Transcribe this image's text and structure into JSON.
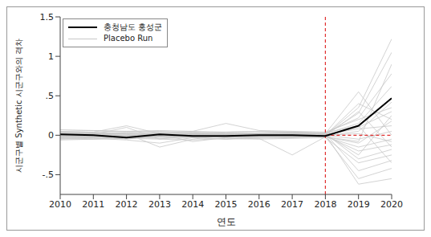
{
  "chart_data": {
    "type": "line",
    "x_label": "연도",
    "y_label": "시군구별 Synthetic 시군구와의 격차",
    "x": [
      2010,
      2011,
      2012,
      2013,
      2014,
      2015,
      2016,
      2017,
      2018,
      2019,
      2020
    ],
    "xlim": [
      2010,
      2020
    ],
    "xticks": [
      2010,
      2011,
      2012,
      2013,
      2014,
      2015,
      2016,
      2017,
      2018,
      2019,
      2020
    ],
    "ylim": [
      -0.75,
      1.5
    ],
    "yticks": [
      {
        "value": -0.5,
        "label": "-.5"
      },
      0,
      {
        "value": 0.5,
        "label": ".5"
      },
      1,
      1.5
    ],
    "legend": "top-left",
    "grid": false,
    "vline": {
      "x": 2018,
      "color": "#e03030",
      "line_style": "dashed"
    },
    "hline": {
      "y": 0,
      "x_from": 2018,
      "color": "#e03030",
      "line_style": "dashed"
    },
    "series": [
      {
        "name": "충청남도 홍성군",
        "color": "#000000",
        "line_style": "solid",
        "values": [
          0.01,
          0.0,
          -0.03,
          0.01,
          -0.01,
          -0.01,
          0.0,
          0.0,
          -0.01,
          0.12,
          0.47
        ]
      }
    ],
    "placebo": {
      "name": "Placebo Run",
      "color": "#c8c8c8",
      "line_style": "solid",
      "runs": [
        [
          0.02,
          0.03,
          0.01,
          0.02,
          0.0,
          0.01,
          0.02,
          0.01,
          0.0,
          0.35,
          1.22
        ],
        [
          -0.03,
          -0.02,
          -0.05,
          0.0,
          -0.02,
          -0.01,
          0.0,
          -0.02,
          0.01,
          0.28,
          1.05
        ],
        [
          0.05,
          0.06,
          0.04,
          0.05,
          0.03,
          0.04,
          0.05,
          0.04,
          0.03,
          0.22,
          0.78
        ],
        [
          0.0,
          0.01,
          0.1,
          -0.05,
          0.02,
          0.0,
          0.01,
          0.0,
          0.02,
          0.15,
          0.62
        ],
        [
          -0.05,
          -0.04,
          -0.06,
          -0.1,
          -0.03,
          -0.05,
          -0.02,
          -0.03,
          -0.01,
          0.05,
          0.42
        ],
        [
          0.07,
          0.06,
          0.05,
          0.06,
          0.05,
          0.15,
          0.06,
          0.05,
          0.04,
          0.2,
          0.35
        ],
        [
          0.01,
          0.0,
          -0.01,
          -0.02,
          0.0,
          0.01,
          0.0,
          -0.01,
          0.0,
          0.1,
          0.3
        ],
        [
          -0.02,
          -0.01,
          0.0,
          0.01,
          -0.08,
          -0.03,
          -0.02,
          0.0,
          -0.02,
          -0.1,
          0.18
        ],
        [
          0.03,
          0.02,
          0.03,
          0.02,
          0.04,
          0.02,
          0.03,
          0.02,
          0.01,
          0.08,
          0.12
        ],
        [
          0.0,
          -0.02,
          -0.01,
          0.0,
          0.01,
          0.0,
          -0.01,
          0.0,
          0.0,
          -0.05,
          0.05
        ],
        [
          -0.04,
          -0.03,
          -0.02,
          -0.04,
          -0.03,
          -0.02,
          -0.04,
          -0.25,
          -0.02,
          -0.15,
          -0.05
        ],
        [
          0.02,
          0.01,
          0.02,
          0.0,
          0.01,
          0.02,
          0.01,
          0.02,
          0.0,
          0.02,
          -0.08
        ],
        [
          -0.01,
          0.0,
          -0.02,
          -0.01,
          0.0,
          -0.01,
          0.0,
          -0.01,
          -0.01,
          -0.2,
          -0.12
        ],
        [
          0.04,
          0.03,
          0.02,
          -0.15,
          -0.05,
          0.0,
          0.02,
          0.03,
          0.02,
          -0.3,
          -0.18
        ],
        [
          -0.06,
          -0.05,
          -0.04,
          -0.05,
          -0.06,
          -0.04,
          -0.05,
          -0.04,
          -0.03,
          -0.35,
          -0.25
        ],
        [
          0.01,
          0.02,
          0.0,
          0.01,
          0.02,
          0.01,
          0.0,
          0.01,
          0.02,
          -0.45,
          -0.32
        ],
        [
          -0.02,
          -0.03,
          -0.01,
          -0.02,
          -0.01,
          -0.03,
          -0.02,
          -0.01,
          -0.02,
          -0.55,
          -0.42
        ],
        [
          0.03,
          0.04,
          0.12,
          0.02,
          0.03,
          0.02,
          0.03,
          0.04,
          0.01,
          -0.62,
          -0.55
        ],
        [
          0.0,
          0.01,
          0.0,
          -0.01,
          0.0,
          0.01,
          0.0,
          0.01,
          0.0,
          0.4,
          0.2
        ],
        [
          -0.03,
          -0.02,
          -0.03,
          -0.02,
          -0.01,
          -0.02,
          -0.03,
          -0.02,
          -0.01,
          0.3,
          -0.15
        ],
        [
          0.02,
          0.03,
          0.02,
          0.03,
          0.02,
          0.03,
          0.02,
          0.03,
          0.02,
          0.55,
          0.0
        ],
        [
          -0.01,
          -0.02,
          0.0,
          -0.01,
          -0.02,
          0.0,
          -0.01,
          -0.02,
          0.01,
          -0.25,
          0.25
        ],
        [
          0.05,
          0.04,
          0.05,
          0.04,
          0.05,
          0.04,
          0.05,
          0.04,
          0.03,
          0.12,
          -0.35
        ],
        [
          -0.04,
          -0.05,
          -0.03,
          -0.04,
          -0.03,
          -0.05,
          -0.04,
          -0.03,
          -0.02,
          -0.08,
          0.9
        ]
      ]
    }
  }
}
